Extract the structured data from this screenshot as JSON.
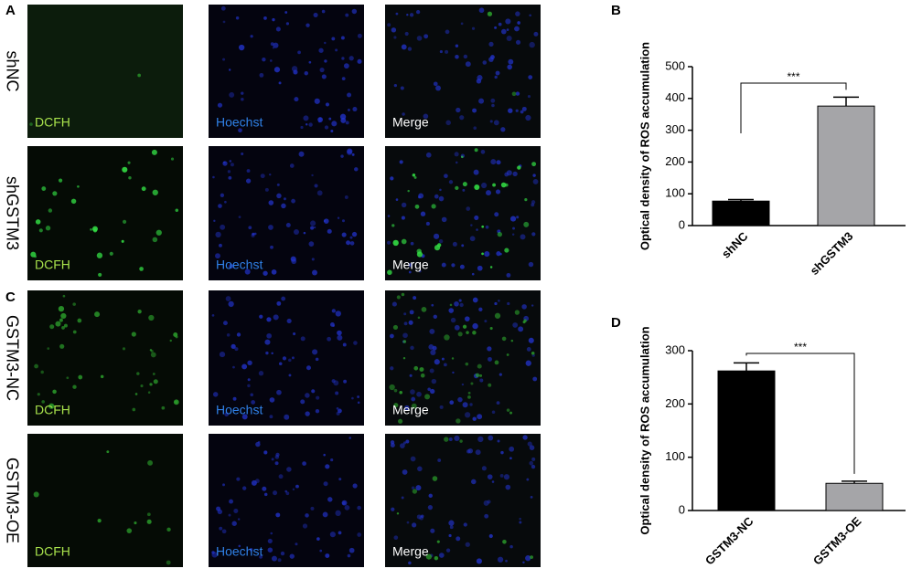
{
  "figure": {
    "panel_labels": [
      "A",
      "C"
    ],
    "rows": [
      "shNC",
      "shGSTM3",
      "GSTM3-NC",
      "GSTM3-OE"
    ],
    "channels": [
      "DCFH",
      "Hoechst",
      "Merge"
    ]
  },
  "chart_data": [
    {
      "type": "bar",
      "panel_label": "B",
      "ylabel": "Optical density of ROS accumulation",
      "categories": [
        "shNC",
        "shGSTM3"
      ],
      "values": [
        77,
        376
      ],
      "errors": [
        5,
        28
      ],
      "colors": [
        "#000000",
        "#a5a5a8"
      ],
      "ylim": [
        0,
        500
      ],
      "yticks": [
        0,
        100,
        200,
        300,
        400,
        500
      ],
      "annotation": "***"
    },
    {
      "type": "bar",
      "panel_label": "D",
      "ylabel": "Optical density of ROS accumulation",
      "categories": [
        "GSTM3-NC",
        "GSTM3-OE"
      ],
      "values": [
        262,
        51
      ],
      "errors": [
        15,
        4
      ],
      "colors": [
        "#000000",
        "#a5a5a8"
      ],
      "ylim": [
        0,
        300
      ],
      "yticks": [
        0,
        100,
        200,
        300
      ],
      "annotation": "***"
    }
  ]
}
